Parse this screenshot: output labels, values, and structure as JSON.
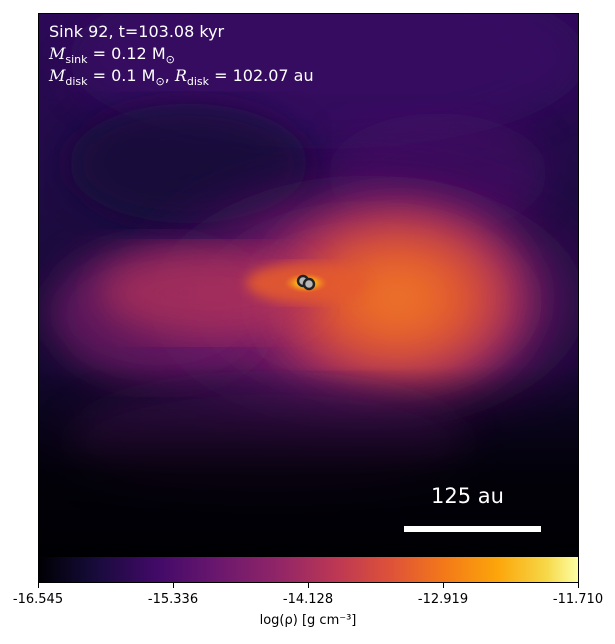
{
  "annotation": {
    "line1": "Sink 92, t=103.08 kyr",
    "m_sink_label": "M",
    "m_sink_sub": "sink",
    "m_sink_value": " = 0.12 M",
    "m_sink_unit_sub": "⊙",
    "m_disk_label": "M",
    "m_disk_sub": "disk",
    "m_disk_value": " = 0.1 M",
    "m_disk_unit_sub": "⊙",
    "r_disk_sep": ", ",
    "r_disk_label": "R",
    "r_disk_sub": "disk",
    "r_disk_value": " = 102.07 au"
  },
  "scale_bar": {
    "label": "125 au"
  },
  "colorbar": {
    "ticks": [
      "-16.545",
      "-15.336",
      "-14.128",
      "-12.919",
      "-11.710"
    ],
    "label": "log(ρ) [g cm⁻³]",
    "colormap": "inferno"
  },
  "colors": {
    "background_low": "#050312",
    "core": "#fde68a",
    "disk": "#e0572e"
  }
}
